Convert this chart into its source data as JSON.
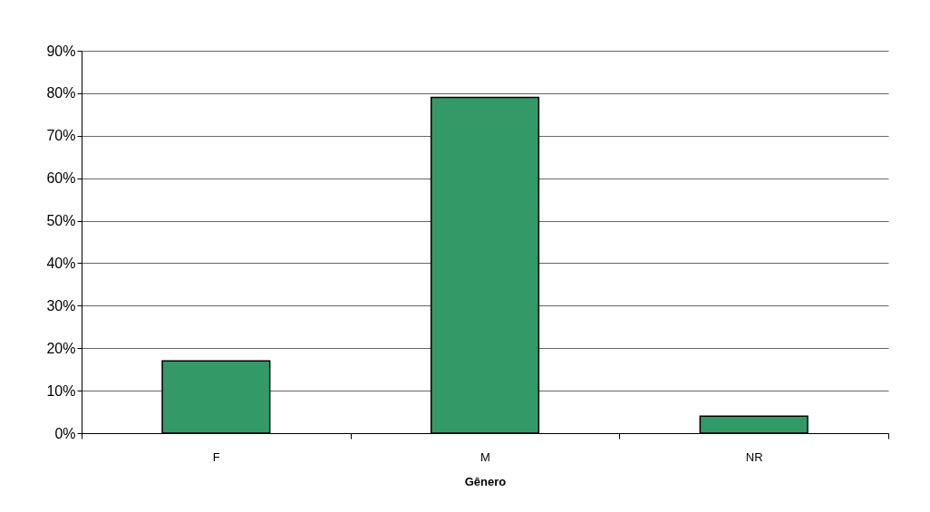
{
  "chart_data": {
    "type": "bar",
    "xlabel": "Gênero",
    "categories": [
      "F",
      "M",
      "NR"
    ],
    "series": [
      {
        "color": "#339966",
        "values": [
          17,
          79,
          4
        ]
      }
    ],
    "ylim": [
      0,
      90
    ],
    "yticks": [
      {
        "value": 0,
        "label": "0%"
      },
      {
        "value": 10,
        "label": "10%"
      },
      {
        "value": 20,
        "label": "20%"
      },
      {
        "value": 30,
        "label": "30%"
      },
      {
        "value": 40,
        "label": "40%"
      },
      {
        "value": 50,
        "label": "50%"
      },
      {
        "value": 60,
        "label": "60%"
      },
      {
        "value": 70,
        "label": "70%"
      },
      {
        "value": 80,
        "label": "80%"
      },
      {
        "value": 90,
        "label": "90%"
      }
    ],
    "grid": "y",
    "legend": false
  }
}
